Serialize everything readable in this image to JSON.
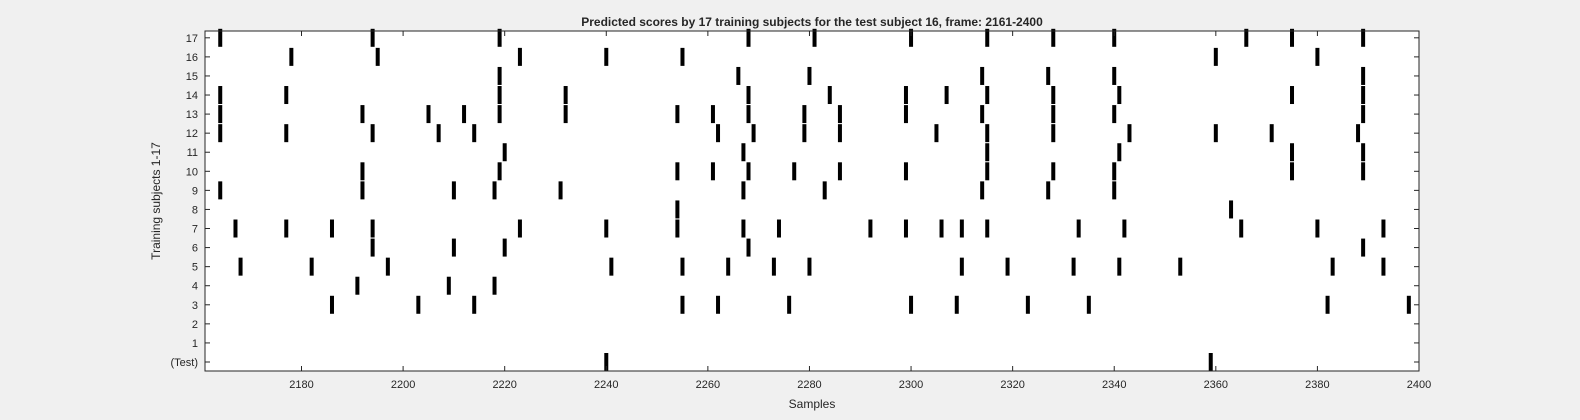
{
  "chart_data": {
    "type": "raster",
    "title": "Predicted scores by 17 training subjects for the test subject 16, frame: 2161-2400",
    "xlabel": "Samples",
    "ylabel": "Training subjects 1-17",
    "xlim": [
      2161,
      2400
    ],
    "xticks": [
      2180,
      2200,
      2220,
      2240,
      2260,
      2280,
      2300,
      2320,
      2340,
      2360,
      2380,
      2400
    ],
    "rows": [
      {
        "label": "(Test)",
        "events": [
          2240,
          2359
        ]
      },
      {
        "label": "1",
        "events": []
      },
      {
        "label": "2",
        "events": []
      },
      {
        "label": "3",
        "events": [
          2186,
          2203,
          2214,
          2255,
          2262,
          2276,
          2300,
          2309,
          2323,
          2335,
          2382,
          2398
        ]
      },
      {
        "label": "4",
        "events": [
          2191,
          2209,
          2218
        ]
      },
      {
        "label": "5",
        "events": [
          2168,
          2182,
          2197,
          2241,
          2255,
          2264,
          2273,
          2280,
          2310,
          2319,
          2332,
          2341,
          2353,
          2383,
          2393
        ]
      },
      {
        "label": "6",
        "events": [
          2194,
          2210,
          2220,
          2268,
          2389
        ]
      },
      {
        "label": "7",
        "events": [
          2167,
          2177,
          2186,
          2194,
          2223,
          2240,
          2254,
          2267,
          2274,
          2292,
          2299,
          2306,
          2310,
          2315,
          2333,
          2342,
          2365,
          2380,
          2393
        ]
      },
      {
        "label": "8",
        "events": [
          2254,
          2363
        ]
      },
      {
        "label": "9",
        "events": [
          2164,
          2192,
          2210,
          2218,
          2231,
          2267,
          2283,
          2314,
          2327,
          2340
        ]
      },
      {
        "label": "10",
        "events": [
          2192,
          2219,
          2254,
          2261,
          2268,
          2277,
          2286,
          2299,
          2315,
          2328,
          2340,
          2375,
          2389
        ]
      },
      {
        "label": "11",
        "events": [
          2220,
          2267,
          2315,
          2341,
          2375,
          2389
        ]
      },
      {
        "label": "12",
        "events": [
          2164,
          2177,
          2194,
          2207,
          2214,
          2262,
          2269,
          2279,
          2286,
          2305,
          2315,
          2328,
          2343,
          2360,
          2371,
          2388
        ]
      },
      {
        "label": "13",
        "events": [
          2164,
          2192,
          2205,
          2212,
          2219,
          2232,
          2254,
          2261,
          2268,
          2279,
          2286,
          2299,
          2314,
          2328,
          2340,
          2389
        ]
      },
      {
        "label": "14",
        "events": [
          2164,
          2177,
          2219,
          2232,
          2268,
          2284,
          2299,
          2307,
          2315,
          2328,
          2341,
          2375,
          2389
        ]
      },
      {
        "label": "15",
        "events": [
          2219,
          2266,
          2280,
          2314,
          2327,
          2340,
          2389
        ]
      },
      {
        "label": "16",
        "events": [
          2178,
          2195,
          2223,
          2240,
          2255,
          2360,
          2380
        ]
      },
      {
        "label": "17",
        "events": [
          2164,
          2194,
          2219,
          2268,
          2281,
          2300,
          2315,
          2328,
          2340,
          2366,
          2375,
          2389
        ]
      }
    ]
  }
}
